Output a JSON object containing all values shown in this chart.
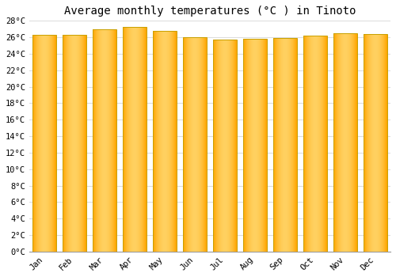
{
  "title": "Average monthly temperatures (°C ) in Tinoto",
  "months": [
    "Jan",
    "Feb",
    "Mar",
    "Apr",
    "May",
    "Jun",
    "Jul",
    "Aug",
    "Sep",
    "Oct",
    "Nov",
    "Dec"
  ],
  "temperatures": [
    26.3,
    26.3,
    27.0,
    27.3,
    26.8,
    26.0,
    25.7,
    25.8,
    25.9,
    26.2,
    26.5,
    26.4
  ],
  "bar_color_center": "#FFD060",
  "bar_color_edge": "#FFA500",
  "bar_border_color": "#C8A000",
  "background_color": "#FFFFFF",
  "plot_bg_color": "#FFFFFF",
  "grid_color": "#DDDDDD",
  "ylim": [
    0,
    28
  ],
  "ytick_step": 2,
  "title_fontsize": 10,
  "tick_fontsize": 7.5,
  "font_family": "monospace"
}
